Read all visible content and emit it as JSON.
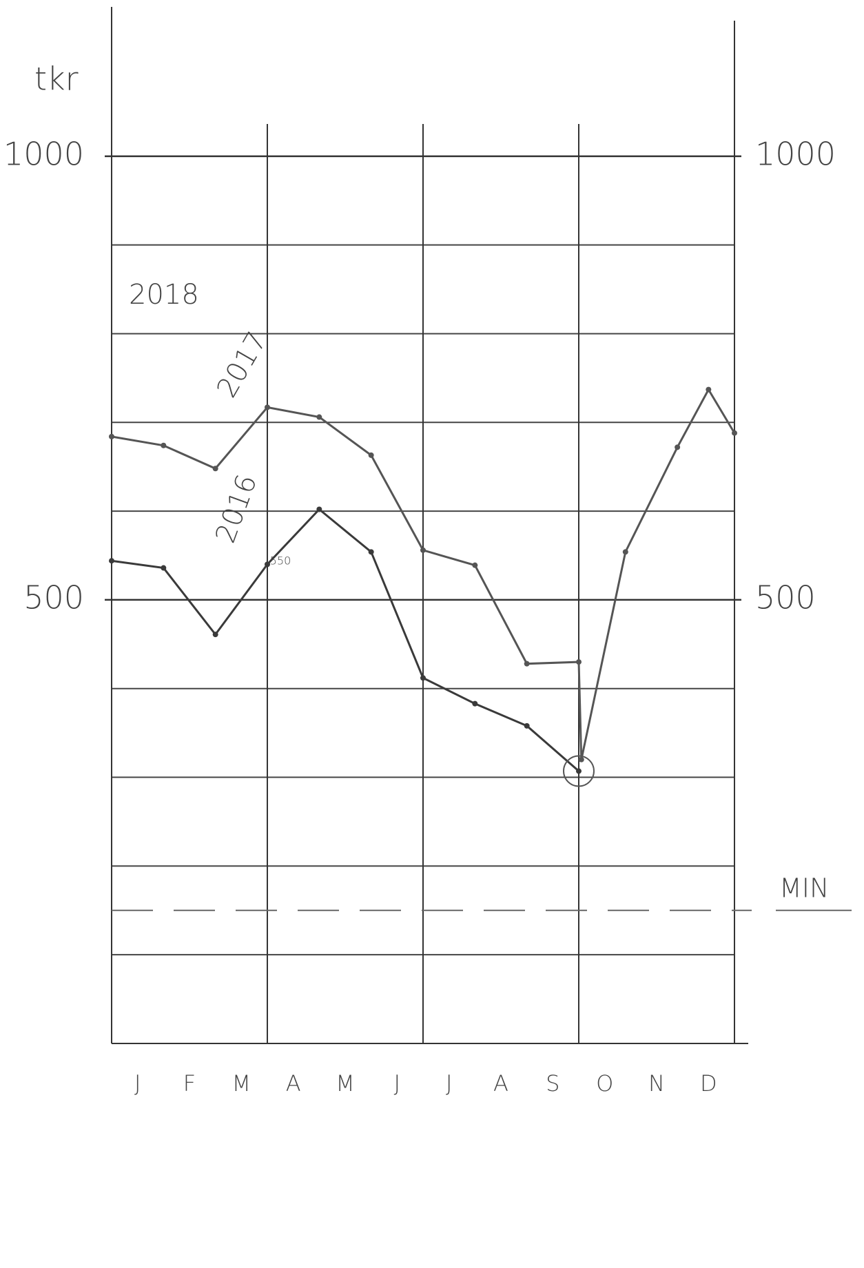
{
  "chart_data": {
    "type": "line",
    "unit_label": "tkr",
    "categories": [
      "J",
      "F",
      "M",
      "A",
      "M",
      "J",
      "J",
      "A",
      "S",
      "O",
      "N",
      "D"
    ],
    "xlim": [
      0,
      12
    ],
    "x_grid": [
      0,
      3,
      6,
      9,
      12
    ],
    "ylim": [
      0,
      1100
    ],
    "yticks": [
      500,
      1000
    ],
    "minor_yticks": [
      100,
      200,
      300,
      400,
      600,
      700,
      800,
      900
    ],
    "grid": true,
    "series": [
      {
        "name": "2016",
        "color": "#3a3a3a",
        "x": [
          0,
          1,
          2,
          3,
          4,
          5,
          6,
          7,
          8,
          9
        ],
        "values": [
          544,
          536,
          461,
          540,
          602,
          554,
          412,
          383,
          358,
          307
        ]
      },
      {
        "name": "2017",
        "color": "#555555",
        "x": [
          0,
          1,
          2,
          3,
          4,
          5,
          6,
          7,
          8,
          9,
          9.05,
          9.9,
          10.9,
          11.5,
          12
        ],
        "values": [
          684,
          674,
          648,
          717,
          706,
          663,
          556,
          539,
          428,
          430,
          320,
          554,
          672,
          737,
          688
        ]
      }
    ],
    "annotations": [
      "2018",
      "550"
    ],
    "min_line": 150,
    "min_label": "MIN"
  }
}
